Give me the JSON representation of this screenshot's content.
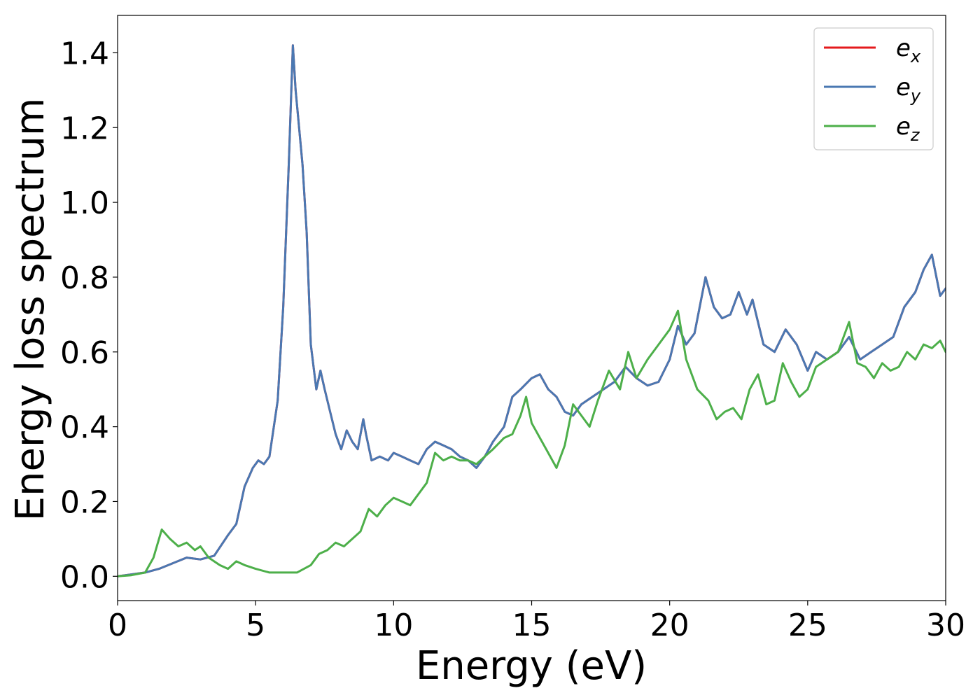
{
  "chart_data": {
    "type": "line",
    "xlabel": "Energy (eV)",
    "ylabel": "Energy loss spectrum",
    "xlim": [
      0,
      30
    ],
    "ylim": [
      -0.065,
      1.5
    ],
    "xticks": [
      0,
      5,
      10,
      15,
      20,
      25,
      30
    ],
    "xtick_labels": [
      "0",
      "5",
      "10",
      "15",
      "20",
      "25",
      "30"
    ],
    "yticks": [
      0.0,
      0.2,
      0.4,
      0.6,
      0.8,
      1.0,
      1.2,
      1.4
    ],
    "ytick_labels": [
      "0.0",
      "0.2",
      "0.4",
      "0.6",
      "0.8",
      "1.0",
      "1.2",
      "1.4"
    ],
    "grid": false,
    "legend_position": "top-right",
    "series": [
      {
        "name": "e_x",
        "legend_base": "e",
        "legend_sub": "x",
        "color": "#e41a1c",
        "x": [
          0,
          0.5,
          1.0,
          1.5,
          2.0,
          2.5,
          3.0,
          3.5,
          4.0,
          4.3,
          4.6,
          4.9,
          5.1,
          5.3,
          5.5,
          5.8,
          6.0,
          6.2,
          6.35,
          6.45,
          6.55,
          6.7,
          6.85,
          7.0,
          7.2,
          7.35,
          7.5,
          7.7,
          7.9,
          8.1,
          8.3,
          8.5,
          8.7,
          8.9,
          9.0,
          9.2,
          9.5,
          9.8,
          10.0,
          10.3,
          10.6,
          10.9,
          11.2,
          11.5,
          11.8,
          12.1,
          12.4,
          12.7,
          13.0,
          13.3,
          13.6,
          14.0,
          14.3,
          14.6,
          15.0,
          15.3,
          15.6,
          15.9,
          16.2,
          16.5,
          16.8,
          17.2,
          17.6,
          18.0,
          18.4,
          18.8,
          19.2,
          19.6,
          20.0,
          20.3,
          20.6,
          20.9,
          21.3,
          21.6,
          21.9,
          22.2,
          22.5,
          22.8,
          23.0,
          23.4,
          23.8,
          24.2,
          24.6,
          25.0,
          25.3,
          25.7,
          26.1,
          26.5,
          26.9,
          27.3,
          27.7,
          28.1,
          28.5,
          28.9,
          29.2,
          29.5,
          29.8,
          30.0
        ],
        "y": [
          0.0,
          0.005,
          0.01,
          0.02,
          0.035,
          0.05,
          0.045,
          0.055,
          0.11,
          0.14,
          0.24,
          0.29,
          0.31,
          0.3,
          0.32,
          0.47,
          0.72,
          1.1,
          1.42,
          1.3,
          1.22,
          1.1,
          0.92,
          0.62,
          0.5,
          0.55,
          0.5,
          0.44,
          0.38,
          0.34,
          0.39,
          0.36,
          0.34,
          0.42,
          0.38,
          0.31,
          0.32,
          0.31,
          0.33,
          0.32,
          0.31,
          0.3,
          0.34,
          0.36,
          0.35,
          0.34,
          0.32,
          0.31,
          0.29,
          0.32,
          0.36,
          0.4,
          0.48,
          0.5,
          0.53,
          0.54,
          0.5,
          0.48,
          0.44,
          0.43,
          0.46,
          0.48,
          0.5,
          0.52,
          0.56,
          0.53,
          0.51,
          0.52,
          0.58,
          0.67,
          0.62,
          0.65,
          0.8,
          0.72,
          0.69,
          0.7,
          0.76,
          0.7,
          0.74,
          0.62,
          0.6,
          0.66,
          0.62,
          0.55,
          0.6,
          0.58,
          0.6,
          0.64,
          0.58,
          0.6,
          0.62,
          0.64,
          0.72,
          0.76,
          0.82,
          0.86,
          0.75,
          0.77
        ]
      },
      {
        "name": "e_y",
        "legend_base": "e",
        "legend_sub": "y",
        "color": "#4a78b2",
        "x": [
          0,
          0.5,
          1.0,
          1.5,
          2.0,
          2.5,
          3.0,
          3.5,
          4.0,
          4.3,
          4.6,
          4.9,
          5.1,
          5.3,
          5.5,
          5.8,
          6.0,
          6.2,
          6.35,
          6.45,
          6.55,
          6.7,
          6.85,
          7.0,
          7.2,
          7.35,
          7.5,
          7.7,
          7.9,
          8.1,
          8.3,
          8.5,
          8.7,
          8.9,
          9.0,
          9.2,
          9.5,
          9.8,
          10.0,
          10.3,
          10.6,
          10.9,
          11.2,
          11.5,
          11.8,
          12.1,
          12.4,
          12.7,
          13.0,
          13.3,
          13.6,
          14.0,
          14.3,
          14.6,
          15.0,
          15.3,
          15.6,
          15.9,
          16.2,
          16.5,
          16.8,
          17.2,
          17.6,
          18.0,
          18.4,
          18.8,
          19.2,
          19.6,
          20.0,
          20.3,
          20.6,
          20.9,
          21.3,
          21.6,
          21.9,
          22.2,
          22.5,
          22.8,
          23.0,
          23.4,
          23.8,
          24.2,
          24.6,
          25.0,
          25.3,
          25.7,
          26.1,
          26.5,
          26.9,
          27.3,
          27.7,
          28.1,
          28.5,
          28.9,
          29.2,
          29.5,
          29.8,
          30.0
        ],
        "y": [
          0.0,
          0.005,
          0.01,
          0.02,
          0.035,
          0.05,
          0.045,
          0.055,
          0.11,
          0.14,
          0.24,
          0.29,
          0.31,
          0.3,
          0.32,
          0.47,
          0.72,
          1.1,
          1.42,
          1.3,
          1.22,
          1.1,
          0.92,
          0.62,
          0.5,
          0.55,
          0.5,
          0.44,
          0.38,
          0.34,
          0.39,
          0.36,
          0.34,
          0.42,
          0.38,
          0.31,
          0.32,
          0.31,
          0.33,
          0.32,
          0.31,
          0.3,
          0.34,
          0.36,
          0.35,
          0.34,
          0.32,
          0.31,
          0.29,
          0.32,
          0.36,
          0.4,
          0.48,
          0.5,
          0.53,
          0.54,
          0.5,
          0.48,
          0.44,
          0.43,
          0.46,
          0.48,
          0.5,
          0.52,
          0.56,
          0.53,
          0.51,
          0.52,
          0.58,
          0.67,
          0.62,
          0.65,
          0.8,
          0.72,
          0.69,
          0.7,
          0.76,
          0.7,
          0.74,
          0.62,
          0.6,
          0.66,
          0.62,
          0.55,
          0.6,
          0.58,
          0.6,
          0.64,
          0.58,
          0.6,
          0.62,
          0.64,
          0.72,
          0.76,
          0.82,
          0.86,
          0.75,
          0.77
        ]
      },
      {
        "name": "e_z",
        "legend_base": "e",
        "legend_sub": "z",
        "color": "#4daf4a",
        "x": [
          0,
          0.5,
          1.0,
          1.3,
          1.6,
          1.9,
          2.2,
          2.5,
          2.8,
          3.0,
          3.3,
          3.7,
          4.0,
          4.3,
          4.6,
          5.0,
          5.5,
          6.0,
          6.5,
          7.0,
          7.3,
          7.6,
          7.9,
          8.2,
          8.5,
          8.8,
          9.1,
          9.4,
          9.7,
          10.0,
          10.3,
          10.6,
          10.9,
          11.2,
          11.5,
          11.8,
          12.1,
          12.4,
          12.7,
          13.0,
          13.3,
          13.6,
          14.0,
          14.3,
          14.6,
          14.8,
          15.0,
          15.3,
          15.6,
          15.9,
          16.2,
          16.5,
          16.8,
          17.1,
          17.4,
          17.8,
          18.2,
          18.5,
          18.8,
          19.2,
          19.6,
          20.0,
          20.3,
          20.6,
          21.0,
          21.4,
          21.7,
          22.0,
          22.3,
          22.6,
          22.9,
          23.2,
          23.5,
          23.8,
          24.1,
          24.4,
          24.7,
          25.0,
          25.3,
          25.7,
          26.1,
          26.5,
          26.8,
          27.1,
          27.4,
          27.7,
          28.0,
          28.3,
          28.6,
          28.9,
          29.2,
          29.5,
          29.8,
          30.0
        ],
        "y": [
          0.0,
          0.003,
          0.01,
          0.05,
          0.125,
          0.1,
          0.08,
          0.09,
          0.07,
          0.08,
          0.05,
          0.03,
          0.02,
          0.04,
          0.03,
          0.02,
          0.01,
          0.01,
          0.01,
          0.03,
          0.06,
          0.07,
          0.09,
          0.08,
          0.1,
          0.12,
          0.18,
          0.16,
          0.19,
          0.21,
          0.2,
          0.19,
          0.22,
          0.25,
          0.33,
          0.31,
          0.32,
          0.31,
          0.31,
          0.3,
          0.32,
          0.34,
          0.37,
          0.38,
          0.43,
          0.48,
          0.41,
          0.37,
          0.33,
          0.29,
          0.35,
          0.46,
          0.43,
          0.4,
          0.47,
          0.55,
          0.5,
          0.6,
          0.53,
          0.58,
          0.62,
          0.66,
          0.71,
          0.58,
          0.5,
          0.47,
          0.42,
          0.44,
          0.45,
          0.42,
          0.5,
          0.54,
          0.46,
          0.47,
          0.57,
          0.52,
          0.48,
          0.5,
          0.56,
          0.58,
          0.6,
          0.68,
          0.57,
          0.56,
          0.53,
          0.57,
          0.55,
          0.56,
          0.6,
          0.58,
          0.62,
          0.61,
          0.63,
          0.6
        ]
      }
    ]
  }
}
